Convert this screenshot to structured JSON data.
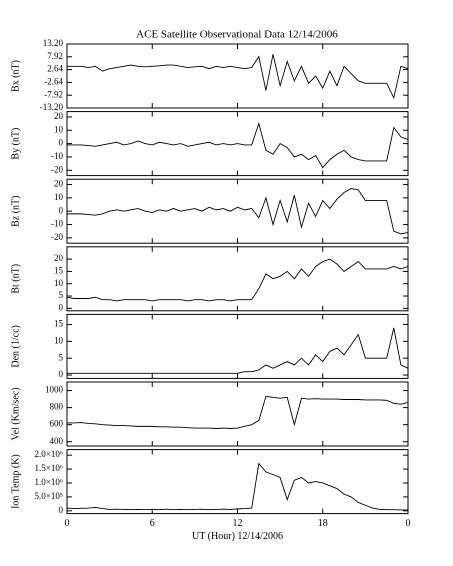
{
  "chart_data": [
    {
      "type": "line",
      "title": "ACE Satellite Observational Data   12/14/2006",
      "ylabel": "Bx (nT)",
      "color": "#000000",
      "x": [
        0,
        0.5,
        1,
        1.5,
        2,
        2.5,
        3,
        3.5,
        4,
        4.5,
        5,
        5.5,
        6,
        6.5,
        7,
        7.5,
        8,
        8.5,
        9,
        9.5,
        10,
        10.5,
        11,
        11.5,
        12,
        12.5,
        13,
        13.5,
        14,
        14.5,
        15,
        15.5,
        16,
        16.5,
        17,
        17.5,
        18,
        18.5,
        19,
        19.5,
        20,
        20.5,
        21,
        21.5,
        22,
        22.5,
        23,
        23.5,
        24
      ],
      "values": [
        4,
        4,
        4,
        3.5,
        4,
        2,
        3,
        3.5,
        4,
        4.5,
        4,
        3.8,
        4,
        4.2,
        4.5,
        4.5,
        4,
        3.5,
        3.8,
        4,
        3,
        4,
        3.5,
        4,
        3.5,
        3,
        3.5,
        8,
        -6,
        9,
        -4,
        6,
        -2,
        4,
        -3,
        0,
        -5,
        2,
        -4,
        4,
        1,
        -2,
        -3,
        -3,
        -3,
        -3,
        -9,
        4,
        3
      ],
      "xlim": [
        0,
        24
      ],
      "ylim": [
        -13.2,
        13.2
      ],
      "yticks": [
        {
          "value": 13.2,
          "label": "13.20"
        },
        7.92,
        2.64,
        -2.64,
        -7.92,
        {
          "value": -13.2,
          "label": "-13.20"
        }
      ]
    },
    {
      "type": "line",
      "ylabel": "By (nT)",
      "color": "#000000",
      "x": [
        0,
        0.5,
        1,
        1.5,
        2,
        2.5,
        3,
        3.5,
        4,
        4.5,
        5,
        5.5,
        6,
        6.5,
        7,
        7.5,
        8,
        8.5,
        9,
        9.5,
        10,
        10.5,
        11,
        11.5,
        12,
        12.5,
        13,
        13.5,
        14,
        14.5,
        15,
        15.5,
        16,
        16.5,
        17,
        17.5,
        18,
        18.5,
        19,
        19.5,
        20,
        20.5,
        21,
        21.5,
        22,
        22.5,
        23,
        23.5,
        24
      ],
      "values": [
        -1,
        -1,
        -1,
        -1.5,
        -2,
        -1,
        0,
        1,
        -1,
        0,
        2,
        0,
        -1,
        1,
        0,
        -1,
        0,
        -2,
        -1,
        0,
        1,
        -1,
        0,
        -1,
        0,
        -1,
        -1,
        15,
        -5,
        -8,
        0,
        -3,
        -10,
        -8,
        -12,
        -9,
        -18,
        -12,
        -8,
        -5,
        -10,
        -12,
        -13,
        -13,
        -13,
        -13,
        12,
        5,
        3
      ],
      "xlim": [
        0,
        24
      ],
      "ylim": [
        -24,
        24
      ],
      "yticks": [
        -20,
        -10,
        0,
        10,
        20
      ]
    },
    {
      "type": "line",
      "ylabel": "Bz (nT)",
      "color": "#000000",
      "x": [
        0,
        0.5,
        1,
        1.5,
        2,
        2.5,
        3,
        3.5,
        4,
        4.5,
        5,
        5.5,
        6,
        6.5,
        7,
        7.5,
        8,
        8.5,
        9,
        9.5,
        10,
        10.5,
        11,
        11.5,
        12,
        12.5,
        13,
        13.5,
        14,
        14.5,
        15,
        15.5,
        16,
        16.5,
        17,
        17.5,
        18,
        18.5,
        19,
        19.5,
        20,
        20.5,
        21,
        21.5,
        22,
        22.5,
        23,
        23.5,
        24
      ],
      "values": [
        -2,
        -2,
        -2,
        -2.5,
        -3,
        -2,
        0,
        1,
        0,
        1,
        2,
        0,
        -1,
        1,
        0,
        2,
        0,
        1,
        2,
        0,
        3,
        1,
        2,
        0,
        3,
        1,
        2,
        -5,
        10,
        -10,
        8,
        -8,
        12,
        -12,
        6,
        -4,
        8,
        2,
        9,
        14,
        17,
        16,
        8,
        8,
        8,
        8,
        -15,
        -17,
        -16
      ],
      "xlim": [
        0,
        24
      ],
      "ylim": [
        -24,
        24
      ],
      "yticks": [
        -20,
        -10,
        0,
        10,
        20
      ]
    },
    {
      "type": "line",
      "ylabel": "Bt (nT)",
      "color": "#000000",
      "x": [
        0,
        0.5,
        1,
        1.5,
        2,
        2.5,
        3,
        3.5,
        4,
        4.5,
        5,
        5.5,
        6,
        6.5,
        7,
        7.5,
        8,
        8.5,
        9,
        9.5,
        10,
        10.5,
        11,
        11.5,
        12,
        12.5,
        13,
        13.5,
        14,
        14.5,
        15,
        15.5,
        16,
        16.5,
        17,
        17.5,
        18,
        18.5,
        19,
        19.5,
        20,
        20.5,
        21,
        21.5,
        22,
        22.5,
        23,
        23.5,
        24
      ],
      "values": [
        4.5,
        4,
        4,
        4,
        4.5,
        3.5,
        3.5,
        3,
        3.5,
        3.5,
        3.5,
        3.5,
        3,
        3.5,
        3.5,
        3.5,
        3.5,
        3,
        3.5,
        3.5,
        3,
        3.5,
        3.5,
        3,
        3.5,
        3.5,
        3.5,
        8,
        14,
        12,
        13,
        15,
        12,
        16,
        13,
        17,
        19,
        20,
        18,
        15,
        17,
        19,
        16,
        16,
        16,
        16,
        17,
        16,
        17
      ],
      "xlim": [
        0,
        24
      ],
      "ylim": [
        -1,
        25
      ],
      "yticks": [
        0,
        5,
        10,
        15,
        20
      ]
    },
    {
      "type": "line",
      "ylabel": "Den (1/cc)",
      "color": "#000000",
      "x": [
        0,
        0.5,
        1,
        1.5,
        2,
        2.5,
        3,
        3.5,
        4,
        4.5,
        5,
        5.5,
        6,
        6.5,
        7,
        7.5,
        8,
        8.5,
        9,
        9.5,
        10,
        10.5,
        11,
        11.5,
        12,
        12.5,
        13,
        13.5,
        14,
        14.5,
        15,
        15.5,
        16,
        16.5,
        17,
        17.5,
        18,
        18.5,
        19,
        19.5,
        20,
        20.5,
        21,
        21.5,
        22,
        22.5,
        23,
        23.5,
        24
      ],
      "values": [
        0.5,
        0.5,
        0.5,
        0.5,
        0.5,
        0.5,
        0.5,
        0.5,
        0.5,
        0.5,
        0.5,
        0.5,
        0.5,
        0.5,
        0.5,
        0.5,
        0.5,
        0.5,
        0.5,
        0.5,
        0.5,
        0.5,
        0.5,
        0.5,
        0.5,
        1,
        1,
        1.5,
        3,
        2,
        3,
        4,
        3,
        5,
        3,
        6,
        4,
        7,
        8,
        6,
        9,
        12,
        5,
        5,
        5,
        5,
        14,
        3,
        2
      ],
      "xlim": [
        0,
        24
      ],
      "ylim": [
        -1,
        18
      ],
      "yticks": [
        0,
        5,
        10,
        15
      ]
    },
    {
      "type": "line",
      "ylabel": "Vel (Km/sec)",
      "color": "#000000",
      "x": [
        0,
        0.5,
        1,
        1.5,
        2,
        2.5,
        3,
        3.5,
        4,
        4.5,
        5,
        5.5,
        6,
        6.5,
        7,
        7.5,
        8,
        8.5,
        9,
        9.5,
        10,
        10.5,
        11,
        11.5,
        12,
        12.5,
        13,
        13.5,
        14,
        14.5,
        15,
        15.5,
        16,
        16.5,
        17,
        17.5,
        18,
        18.5,
        19,
        19.5,
        20,
        20.5,
        21,
        21.5,
        22,
        22.5,
        23,
        23.5,
        24
      ],
      "values": [
        620,
        620,
        625,
        615,
        610,
        600,
        595,
        590,
        590,
        585,
        580,
        580,
        580,
        575,
        575,
        570,
        570,
        565,
        560,
        560,
        560,
        555,
        560,
        555,
        560,
        580,
        600,
        650,
        930,
        920,
        910,
        920,
        600,
        910,
        900,
        905,
        900,
        900,
        900,
        895,
        895,
        895,
        890,
        890,
        890,
        885,
        850,
        840,
        860
      ],
      "xlim": [
        0,
        24
      ],
      "ylim": [
        350,
        1100
      ],
      "yticks": [
        400,
        600,
        800,
        1000
      ]
    },
    {
      "type": "line",
      "ylabel": "Ion Temp (K)",
      "xlabel": "UT (Hour)  12/14/2006",
      "color": "#000000",
      "x": [
        0,
        0.5,
        1,
        1.5,
        2,
        2.5,
        3,
        3.5,
        4,
        4.5,
        5,
        5.5,
        6,
        6.5,
        7,
        7.5,
        8,
        8.5,
        9,
        9.5,
        10,
        10.5,
        11,
        11.5,
        12,
        12.5,
        13,
        13.5,
        14,
        14.5,
        15,
        15.5,
        16,
        16.5,
        17,
        17.5,
        18,
        18.5,
        19,
        19.5,
        20,
        20.5,
        21,
        21.5,
        22,
        22.5,
        23,
        23.5,
        24
      ],
      "values": [
        100000,
        80000,
        90000,
        100000,
        120000,
        80000,
        50000,
        60000,
        50000,
        40000,
        50000,
        40000,
        50000,
        40000,
        60000,
        40000,
        50000,
        40000,
        50000,
        60000,
        40000,
        50000,
        60000,
        50000,
        70000,
        80000,
        100000,
        1700000,
        1400000,
        1300000,
        1200000,
        400000,
        1100000,
        1200000,
        1000000,
        1050000,
        1000000,
        900000,
        800000,
        600000,
        500000,
        300000,
        200000,
        100000,
        50000,
        40000,
        40000,
        30000,
        30000
      ],
      "xlim": [
        0,
        24
      ],
      "ylim": [
        -100000,
        2200000
      ],
      "yticks": [
        0,
        {
          "value": 500000,
          "label": "5.0×10⁵"
        },
        {
          "value": 1000000,
          "label": "1.0×10⁶"
        },
        {
          "value": 1500000,
          "label": "1.5×10⁶"
        },
        {
          "value": 2000000,
          "label": "2.0×10⁶"
        }
      ],
      "xticks": [
        0,
        6,
        12,
        18,
        {
          "value": 24,
          "label": "0"
        }
      ]
    }
  ]
}
